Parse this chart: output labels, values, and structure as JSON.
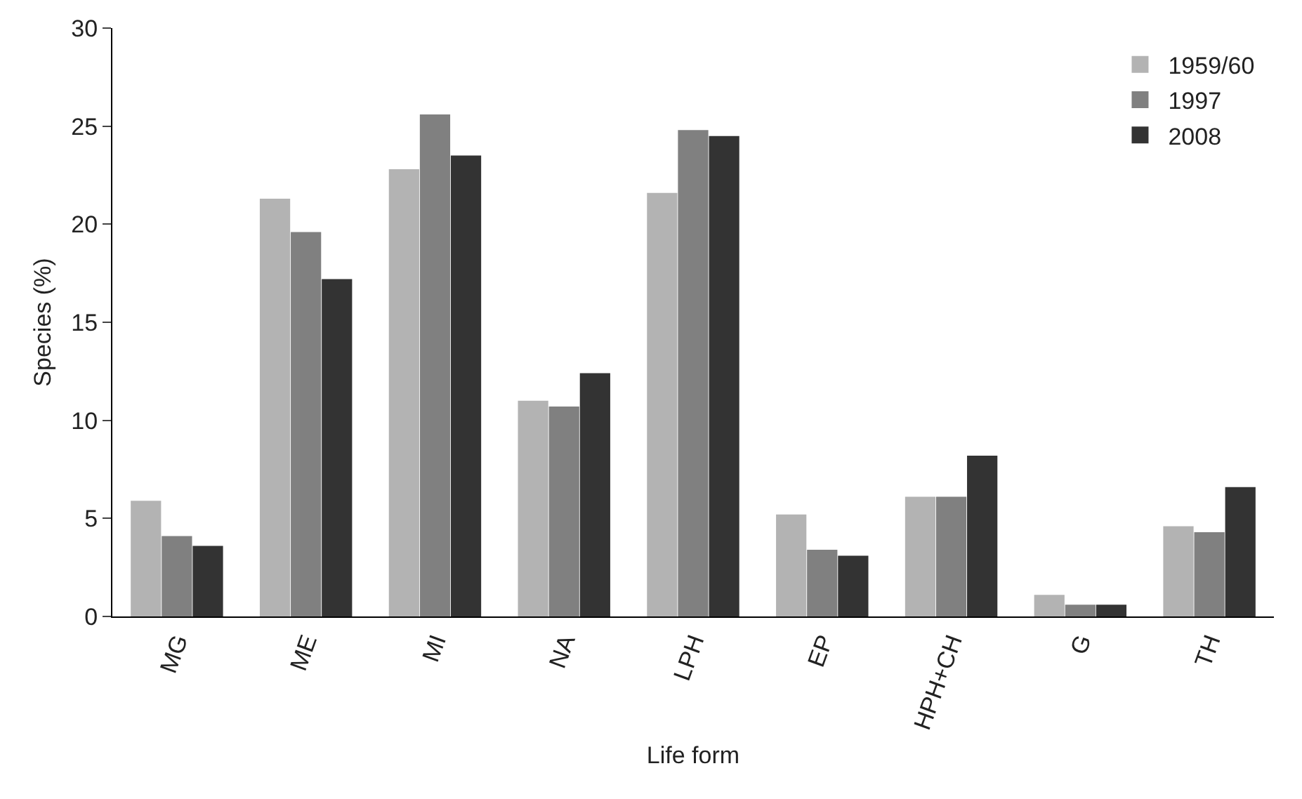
{
  "chart_data": {
    "type": "bar",
    "xlabel": "Life form",
    "ylabel": "Species (%)",
    "categories": [
      "MG",
      "ME",
      "MI",
      "NA",
      "LPH",
      "EP",
      "HPH+CH",
      "G",
      "TH"
    ],
    "series": [
      {
        "name": "1959/60",
        "color": "#b3b3b3",
        "values": [
          5.9,
          21.3,
          22.8,
          11.0,
          21.6,
          5.2,
          6.1,
          1.1,
          4.6
        ]
      },
      {
        "name": "1997",
        "color": "#808080",
        "values": [
          4.1,
          19.6,
          25.6,
          10.7,
          24.8,
          3.4,
          6.1,
          0.6,
          4.3
        ]
      },
      {
        "name": "2008",
        "color": "#333333",
        "values": [
          3.6,
          17.2,
          23.5,
          12.4,
          24.5,
          3.1,
          8.2,
          0.6,
          6.6
        ]
      }
    ],
    "ylim": [
      0,
      30
    ],
    "yticks": [
      0,
      5,
      10,
      15,
      20,
      25,
      30
    ],
    "grid": false,
    "legend": "top right"
  }
}
